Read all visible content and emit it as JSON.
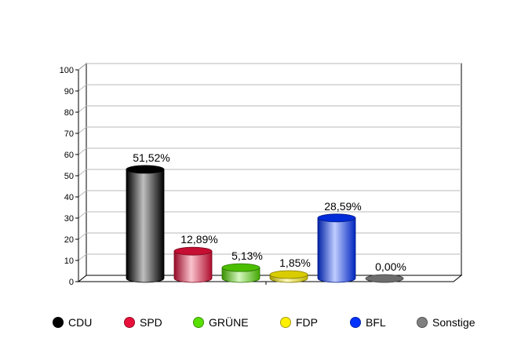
{
  "chart_data": {
    "type": "bar",
    "title": "",
    "xlabel": "",
    "ylabel": "",
    "ylim": [
      0,
      100
    ],
    "yticks": [
      "0",
      "10",
      "20",
      "30",
      "40",
      "50",
      "60",
      "70",
      "80",
      "90",
      "100"
    ],
    "grid": true,
    "legend_position": "bottom",
    "categories": [
      "CDU",
      "SPD",
      "GRÜNE",
      "FDP",
      "BFL",
      "Sonstige"
    ],
    "values": [
      51.52,
      12.89,
      5.13,
      1.85,
      28.59,
      0.0
    ],
    "data_labels": [
      "51,52%",
      "12,89%",
      "5,13%",
      "1,85%",
      "28,59%",
      "0,00%"
    ],
    "colors": [
      "#000000",
      "#e8103a",
      "#58e000",
      "#fff000",
      "#0033ff",
      "#808080"
    ]
  }
}
